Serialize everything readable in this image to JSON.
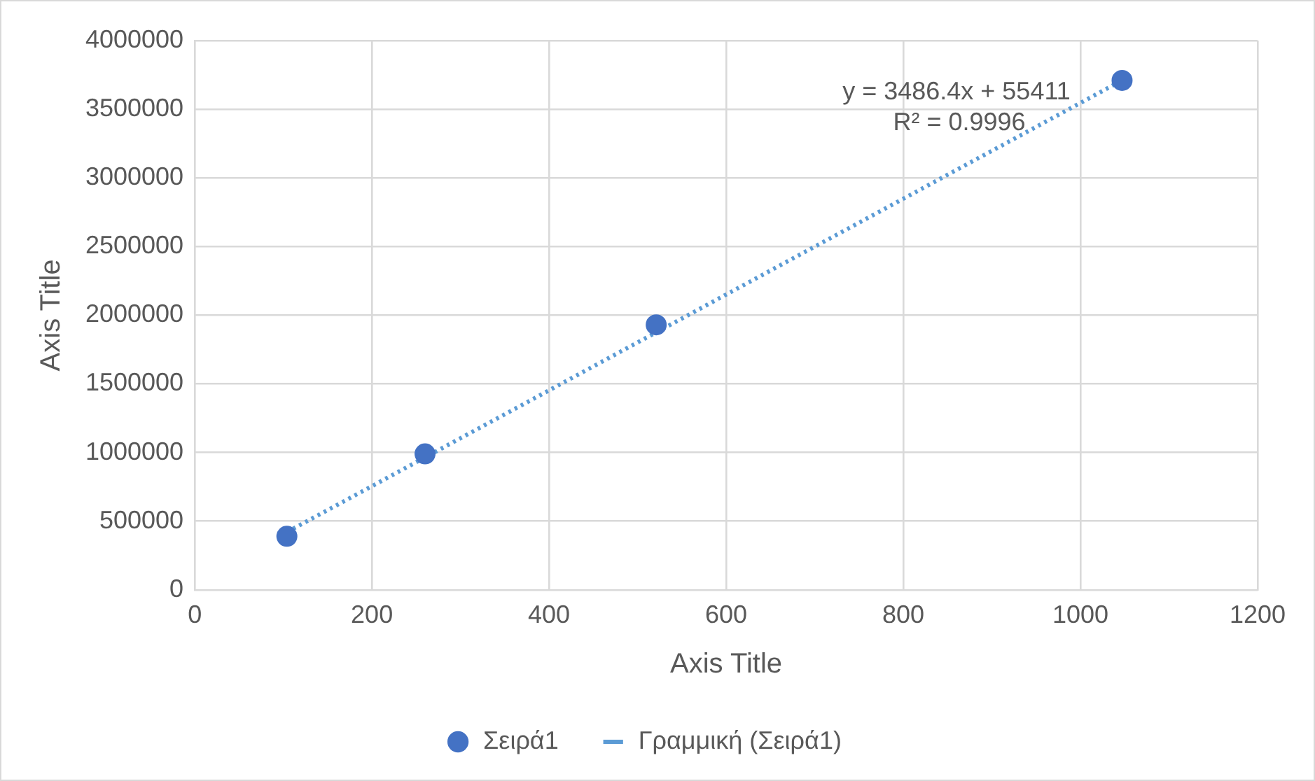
{
  "chart_data": {
    "type": "scatter",
    "xlabel": "Axis Title",
    "ylabel": "Axis Title",
    "xlim": [
      0,
      1200
    ],
    "xticks": [
      0,
      200,
      400,
      600,
      800,
      1000,
      1200
    ],
    "ylim": [
      0,
      4000000
    ],
    "yticks": [
      0,
      500000,
      1000000,
      1500000,
      2000000,
      2500000,
      3000000,
      3500000,
      4000000
    ],
    "grid": true,
    "legend": "bottom",
    "marker": "circle",
    "annotations": [
      "y = 3486.4x + 55411",
      "R² = 0.9996"
    ],
    "series": [
      {
        "name": "Σειρά1",
        "color": "#4472c4",
        "x": [
          104,
          260,
          521,
          1047
        ],
        "values": [
          390000,
          990000,
          1930000,
          3710000
        ]
      },
      {
        "name": "Γραμμική (Σειρά1)",
        "type": "line",
        "line_style": "dotted",
        "marker": "none",
        "color": "#5b9bd5",
        "x": [
          104,
          1047
        ],
        "values": [
          420000,
          3710000
        ]
      }
    ]
  }
}
